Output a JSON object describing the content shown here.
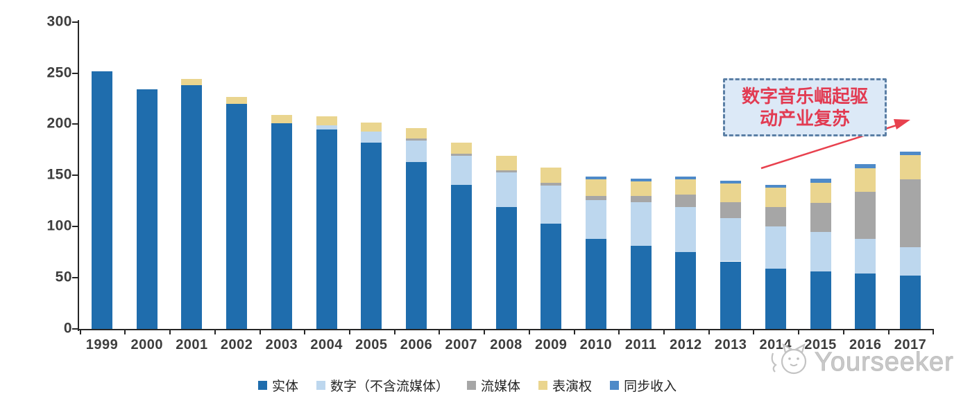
{
  "chart_data": {
    "type": "bar",
    "stacked": true,
    "title": "",
    "xlabel": "",
    "ylabel": "",
    "ylim": [
      0,
      300
    ],
    "yticks": [
      0,
      50,
      100,
      150,
      200,
      250,
      300
    ],
    "grid": false,
    "legend_position": "bottom",
    "categories": [
      "1999",
      "2000",
      "2001",
      "2002",
      "2003",
      "2004",
      "2005",
      "2006",
      "2007",
      "2008",
      "2009",
      "2010",
      "2011",
      "2012",
      "2013",
      "2014",
      "2015",
      "2016",
      "2017"
    ],
    "series": [
      {
        "name": "实体",
        "color": "#1F6DAD",
        "values": [
          252,
          234,
          238,
          220,
          201,
          195,
          182,
          163,
          141,
          119,
          103,
          88,
          81,
          75,
          66,
          59,
          56,
          54,
          52
        ]
      },
      {
        "name": "数字（不含流媒体）",
        "color": "#BDD7EE",
        "values": [
          0,
          0,
          0,
          0,
          0,
          4,
          11,
          21,
          28,
          34,
          37,
          38,
          43,
          44,
          42,
          41,
          39,
          34,
          28
        ]
      },
      {
        "name": "流媒体",
        "color": "#A6A6A6",
        "values": [
          0,
          0,
          0,
          0,
          0,
          0,
          0,
          2,
          2,
          2,
          3,
          4,
          6,
          12,
          16,
          19,
          28,
          46,
          66
        ]
      },
      {
        "name": "表演权",
        "color": "#EAD58F",
        "values": [
          0,
          0,
          6,
          7,
          8,
          9,
          9,
          10,
          11,
          14,
          15,
          16,
          14,
          15,
          18,
          19,
          20,
          23,
          24
        ]
      },
      {
        "name": "同步收入",
        "color": "#4E8AC8",
        "values": [
          0,
          0,
          0,
          0,
          0,
          0,
          0,
          0,
          0,
          0,
          0,
          3,
          3,
          3,
          3,
          3,
          4,
          4,
          3
        ]
      }
    ]
  },
  "annotation": {
    "line1": "数字音乐崛起驱",
    "line2": "动产业复苏",
    "text_color": "#E23B52",
    "box_fill": "#DCE9F7",
    "box_border": "#5B7FA5",
    "arrow_color": "#E8414E"
  },
  "watermark": {
    "text": "Yourseeker",
    "logo": "cat-logo"
  },
  "axis": {
    "color": "#262626"
  }
}
